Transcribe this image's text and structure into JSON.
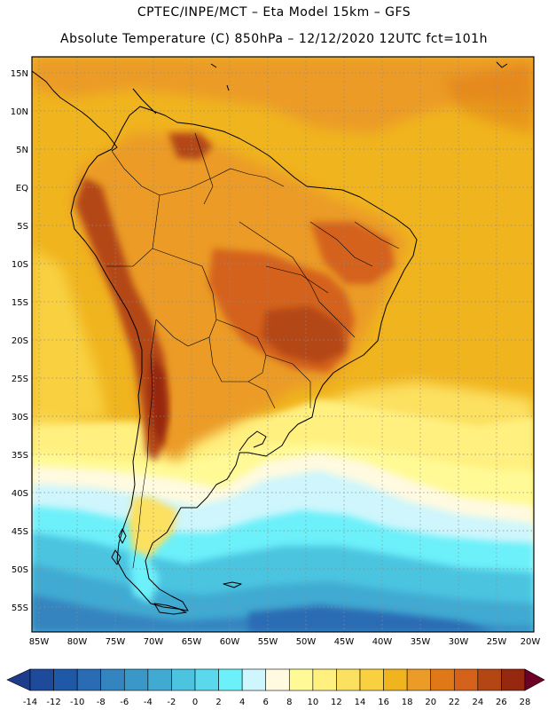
{
  "header": {
    "line1": "CPTEC/INPE/MCT –  Eta Model 15km – GFS",
    "line2": "Absolute Temperature (C) 850hPa – 12/12/2020 12UTC fct=101h"
  },
  "map": {
    "lat_ticks": [
      "15N",
      "10N",
      "5N",
      "EQ",
      "5S",
      "10S",
      "15S",
      "20S",
      "25S",
      "30S",
      "35S",
      "40S",
      "45S",
      "50S",
      "55S"
    ],
    "lon_ticks": [
      "85W",
      "80W",
      "75W",
      "70W",
      "65W",
      "60W",
      "55W",
      "50W",
      "45W",
      "40W",
      "35W",
      "30W",
      "25W",
      "20W"
    ],
    "colors": {
      "frame": "#000000",
      "grid": "#8c8c8c",
      "coast": "#000000"
    }
  },
  "colorbar": {
    "labels": [
      "-14",
      "-12",
      "-10",
      "-8",
      "-6",
      "-4",
      "-2",
      "0",
      "2",
      "4",
      "6",
      "8",
      "10",
      "12",
      "14",
      "16",
      "18",
      "20",
      "22",
      "24",
      "26",
      "28"
    ],
    "colors": [
      "#1e3c8c",
      "#1e4a9c",
      "#2058a8",
      "#2a6cb4",
      "#3484c0",
      "#3a98c8",
      "#40aad2",
      "#4cc4e0",
      "#5ad8ec",
      "#6cf0fa",
      "#cef6fc",
      "#fffae0",
      "#fffa96",
      "#fff080",
      "#fce060",
      "#f8d040",
      "#f0b41e",
      "#eb9b28",
      "#e07818",
      "#d4621a",
      "#b44614",
      "#962810",
      "#781814",
      "#6e0028"
    ]
  }
}
